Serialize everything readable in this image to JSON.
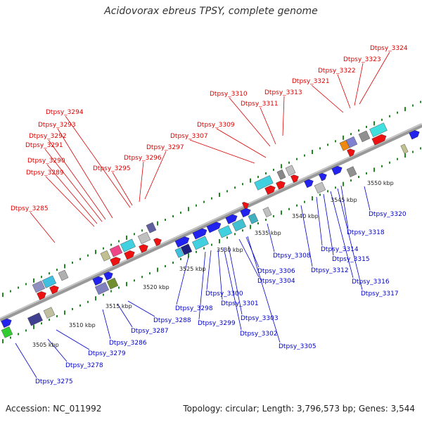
{
  "title": "Acidovorax ebreus TPSY, complete genome",
  "footer": {
    "accession": "Accession: NC_011992",
    "summary": "Topology: circular; Length: 3,796,573 bp; Genes: 3,544"
  },
  "colors": {
    "forward_label": "#dd0000",
    "reverse_label": "#0000cc",
    "backbone": "#888888",
    "tick_dots": "#228822"
  },
  "scale_ticks": [
    "3505 kbp",
    "3510 kbp",
    "3515 kbp",
    "3520 kbp",
    "3525 kbp",
    "3530 kbp",
    "3535 kbp",
    "3540 kbp",
    "3545 kbp",
    "3550 kbp"
  ],
  "forward_genes": [
    "Dtpsy_3285",
    "Dtpsy_3289",
    "Dtpsy_3290",
    "Dtpsy_3291",
    "Dtpsy_3292",
    "Dtpsy_3293",
    "Dtpsy_3294",
    "Dtpsy_3295",
    "Dtpsy_3296",
    "Dtpsy_3297",
    "Dtpsy_3307",
    "Dtpsy_3309",
    "Dtpsy_3310",
    "Dtpsy_3311",
    "Dtpsy_3313",
    "Dtpsy_3321",
    "Dtpsy_3322",
    "Dtpsy_3323",
    "Dtpsy_3324"
  ],
  "reverse_genes": [
    "Dtpsy_3275",
    "Dtpsy_3278",
    "Dtpsy_3279",
    "Dtpsy_3286",
    "Dtpsy_3287",
    "Dtpsy_3288",
    "Dtpsy_3298",
    "Dtpsy_3299",
    "Dtpsy_3300",
    "Dtpsy_3301",
    "Dtpsy_3302",
    "Dtpsy_3303",
    "Dtpsy_3304",
    "Dtpsy_3305",
    "Dtpsy_3306",
    "Dtpsy_3308",
    "Dtpsy_3312",
    "Dtpsy_3314",
    "Dtpsy_3315",
    "Dtpsy_3316",
    "Dtpsy_3317",
    "Dtpsy_3318",
    "Dtpsy_3320"
  ]
}
